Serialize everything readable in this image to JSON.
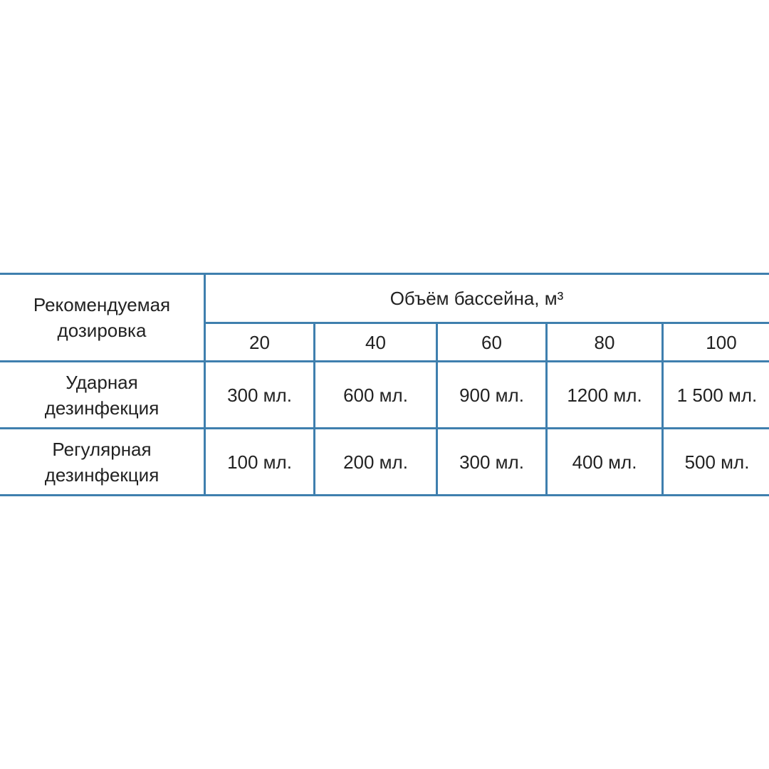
{
  "table": {
    "corner_header": "Рекомендуемая дозировка",
    "group_header": "Объём бассейна, м³",
    "volumes": [
      "20",
      "40",
      "60",
      "80",
      "100"
    ],
    "rows": [
      {
        "label": "Ударная дезинфекция",
        "values": [
          "300 мл.",
          "600 мл.",
          "900 мл.",
          "1200 мл.",
          "1 500 мл."
        ]
      },
      {
        "label": "Регулярная дезинфекция",
        "values": [
          "100 мл.",
          "200 мл.",
          "300 мл.",
          "400 мл.",
          "500 мл."
        ]
      }
    ],
    "border_color": "#3f7fae"
  }
}
